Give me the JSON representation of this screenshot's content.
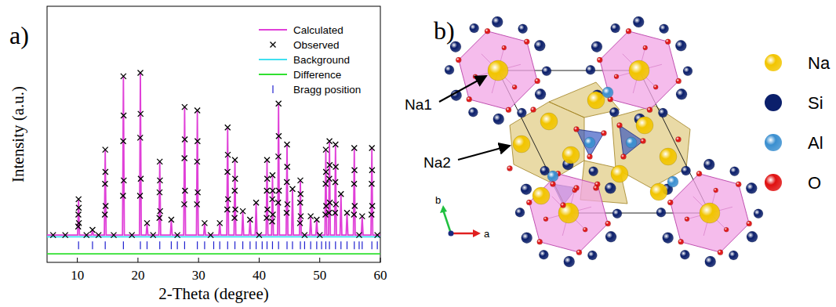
{
  "chart_data": {
    "type": "line",
    "x_label": "2-Theta (degree)",
    "y_label": "Intensity (a.u.)",
    "xlim": [
      5,
      60
    ],
    "ylim": [
      -15,
      135
    ],
    "xticks": [
      10,
      20,
      30,
      40,
      50,
      60
    ],
    "tick_labels": "x",
    "grid": false,
    "legend": "upper right",
    "series": [
      {
        "name": "Calculated",
        "type": "line",
        "line_style": "solid",
        "color": "#e040d8",
        "x": [
          5,
          10.05,
          10.2,
          10.35,
          12.35,
          12.5,
          12.65,
          14.45,
          14.6,
          14.75,
          17.45,
          17.6,
          17.75,
          20.25,
          20.4,
          20.55,
          21.35,
          21.5,
          21.65,
          23.45,
          23.6,
          23.75,
          25.35,
          25.5,
          25.65,
          27.55,
          27.7,
          27.85,
          29.65,
          29.8,
          29.95,
          30.85,
          31.0,
          31.15,
          33.35,
          33.5,
          33.65,
          34.65,
          34.8,
          34.95,
          35.85,
          36.0,
          36.15,
          37.15,
          37.3,
          37.45,
          38.35,
          38.5,
          38.65,
          39.35,
          39.5,
          39.65,
          41.15,
          41.3,
          41.45,
          42.05,
          42.2,
          42.35,
          43.05,
          43.2,
          43.35,
          44.45,
          44.6,
          44.75,
          45.35,
          45.5,
          45.65,
          46.65,
          46.8,
          46.95,
          48.35,
          48.5,
          48.65,
          49.35,
          49.5,
          49.65,
          50.85,
          51.0,
          51.15,
          51.45,
          51.6,
          51.75,
          52.45,
          52.6,
          52.75,
          53.35,
          53.5,
          53.65,
          54.35,
          54.5,
          54.65,
          55.55,
          55.7,
          55.85,
          56.85,
          57.0,
          57.15,
          58.45,
          58.6,
          58.75,
          60
        ],
        "values": [
          1,
          1,
          22,
          1,
          1,
          4,
          1,
          1,
          51,
          1,
          1,
          94,
          1,
          1,
          96,
          1,
          1,
          8,
          1,
          1,
          44,
          1,
          1,
          10,
          1,
          1,
          76,
          1,
          1,
          74,
          1,
          1,
          8,
          1,
          1,
          8,
          1,
          1,
          64,
          1,
          1,
          45,
          1,
          1,
          15,
          1,
          1,
          10,
          1,
          1,
          20,
          1,
          1,
          45,
          1,
          1,
          36,
          1,
          1,
          78,
          1,
          1,
          54,
          1,
          1,
          28,
          1,
          1,
          33,
          1,
          1,
          12,
          1,
          1,
          10,
          1,
          1,
          51,
          1,
          1,
          56,
          1,
          1,
          54,
          1,
          1,
          25,
          1,
          1,
          14,
          1,
          1,
          52,
          1,
          1,
          12,
          1,
          1,
          52,
          1,
          1
        ]
      },
      {
        "name": "Observed",
        "type": "scatter",
        "marker": "x",
        "color": "#000000",
        "x": [
          10.14,
          10.17,
          10.2,
          10.23,
          10.26,
          12.5,
          14.54,
          14.57,
          14.6,
          14.63,
          14.66,
          17.54,
          17.57,
          17.6,
          17.63,
          17.66,
          20.34,
          20.37,
          20.4,
          20.43,
          20.46,
          21.5,
          23.54,
          23.57,
          23.6,
          23.63,
          23.66,
          25.5,
          27.64,
          27.67,
          27.7,
          27.73,
          27.76,
          29.74,
          29.77,
          29.8,
          29.83,
          29.86,
          31.0,
          33.5,
          34.74,
          34.77,
          34.8,
          34.83,
          34.86,
          35.94,
          35.97,
          36.0,
          36.03,
          36.06,
          37.3,
          38.5,
          39.5,
          41.24,
          41.27,
          41.3,
          41.33,
          41.36,
          42.14,
          42.17,
          42.2,
          42.23,
          42.26,
          43.14,
          43.17,
          43.2,
          43.23,
          43.26,
          44.54,
          44.57,
          44.6,
          44.63,
          44.66,
          45.5,
          46.74,
          46.77,
          46.8,
          46.83,
          46.86,
          48.5,
          49.5,
          50.94,
          50.97,
          51.0,
          51.03,
          51.06,
          51.54,
          51.57,
          51.6,
          51.63,
          51.66,
          52.54,
          52.57,
          52.6,
          52.63,
          52.66,
          53.5,
          54.5,
          55.64,
          55.67,
          55.7,
          55.73,
          55.76,
          57.0,
          58.54,
          58.57,
          58.6,
          58.63,
          58.66,
          6,
          8,
          11.5,
          13.5,
          16,
          19,
          22.5,
          26.5,
          32,
          40,
          47.5,
          50,
          56.5,
          59.5
        ],
        "values": [
          6,
          13,
          22,
          17,
          8,
          4,
          13,
          31,
          51,
          38,
          18,
          24,
          56,
          94,
          71,
          33,
          24,
          58,
          96,
          72,
          34,
          8,
          11,
          26,
          44,
          33,
          15,
          10,
          19,
          46,
          76,
          57,
          27,
          19,
          44,
          74,
          56,
          26,
          8,
          8,
          16,
          38,
          64,
          48,
          22,
          11,
          27,
          45,
          34,
          16,
          15,
          10,
          20,
          11,
          27,
          45,
          34,
          16,
          9,
          22,
          36,
          27,
          13,
          20,
          47,
          78,
          59,
          27,
          14,
          32,
          54,
          41,
          19,
          28,
          8,
          20,
          33,
          25,
          12,
          12,
          10,
          13,
          31,
          51,
          38,
          18,
          14,
          34,
          56,
          42,
          20,
          14,
          32,
          54,
          41,
          19,
          25,
          14,
          13,
          31,
          52,
          39,
          18,
          12,
          13,
          31,
          52,
          39,
          18,
          1,
          1,
          1,
          1,
          1,
          1,
          1,
          1,
          1,
          1,
          1,
          1,
          1,
          1
        ]
      },
      {
        "name": "Background",
        "type": "line",
        "line_style": "solid",
        "color": "#40e0f0",
        "x": [
          5,
          60
        ],
        "values": [
          0,
          0
        ]
      },
      {
        "name": "Difference",
        "type": "line",
        "line_style": "solid",
        "color": "#30e030",
        "x": [
          5,
          60
        ],
        "values": [
          -10,
          -10
        ]
      },
      {
        "name": "Bragg position",
        "type": "scatter",
        "marker": "|",
        "color": "#2020d0",
        "x": [
          10.2,
          12.5,
          14.6,
          17.6,
          20.4,
          21.5,
          23.6,
          25.5,
          26.5,
          27.7,
          29.8,
          31.0,
          32.5,
          33.5,
          34.8,
          36.0,
          37.3,
          38.5,
          39.5,
          40.5,
          41.3,
          42.2,
          43.2,
          44.6,
          45.5,
          46.8,
          47.5,
          48.5,
          49.5,
          50.3,
          51.0,
          51.6,
          52.6,
          53.5,
          54.5,
          55.7,
          56.5,
          57.0,
          58.6,
          59.5
        ],
        "values": [
          -5,
          -5,
          -5,
          -5,
          -5,
          -5,
          -5,
          -5,
          -5,
          -5,
          -5,
          -5,
          -5,
          -5,
          -5,
          -5,
          -5,
          -5,
          -5,
          -5,
          -5,
          -5,
          -5,
          -5,
          -5,
          -5,
          -5,
          -5,
          -5,
          -5,
          -5,
          -5,
          -5,
          -5,
          -5,
          -5,
          -5,
          -5,
          -5,
          -5
        ]
      }
    ]
  },
  "panel_labels": [
    "a)",
    "b)"
  ],
  "structure": {
    "site_labels": [
      "Na1",
      "Na2"
    ],
    "axes": [
      "b",
      "a"
    ],
    "legend": [
      {
        "label": "Na",
        "color": "#f2c500"
      },
      {
        "label": "Si",
        "color": "#0b1f6b"
      },
      {
        "label": "Al",
        "color": "#3a8fd0"
      },
      {
        "label": "O",
        "color": "#e01010"
      }
    ]
  }
}
